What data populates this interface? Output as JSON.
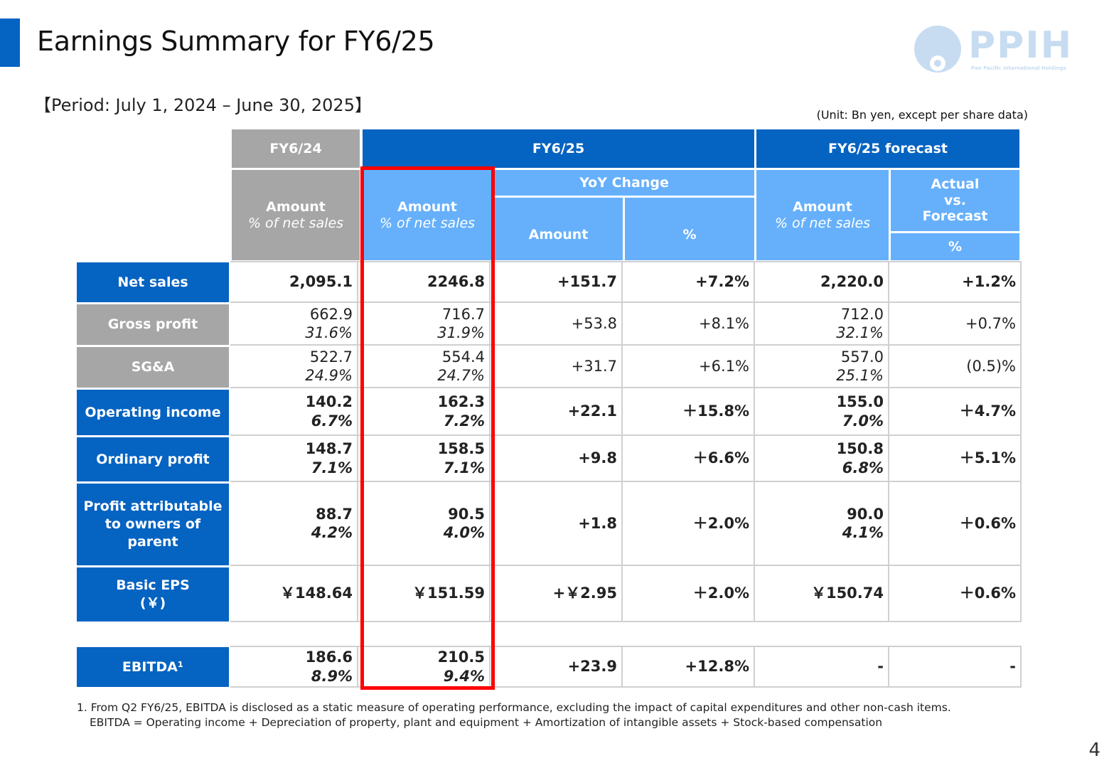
{
  "title": "Earnings Summary for FY6/25",
  "logo": {
    "text": "PPIH",
    "subtitle": "Pan Pacific International Holdings"
  },
  "period": "【Period: July 1, 2024 – June 30, 2025】",
  "unit": "(Unit: Bn yen, except per share data)",
  "headers": {
    "fy24": "FY6/24",
    "fy25": "FY6/25",
    "forecast": "FY6/25 forecast",
    "amount": "Amount",
    "pct_net_sales": "% of net sales",
    "yoy_change": "YoY Change",
    "yoy_amount": "Amount",
    "yoy_pct": "%",
    "actual_vs": "Actual",
    "actual_vs2": "vs.",
    "actual_vs3": "Forecast",
    "actual_pct": "%"
  },
  "rows": [
    {
      "label": "Net sales",
      "fy24": "2,095.1",
      "fy24_pct": "",
      "fy25": "2246.8",
      "fy25_pct": "",
      "yoy_amt": "+151.7",
      "yoy_pct": "+7.2%",
      "fc": "2,220.0",
      "fc_pct": "",
      "avf": "+1.2%"
    },
    {
      "label": "Gross profit",
      "fy24": "662.9",
      "fy24_pct": "31.6%",
      "fy25": "716.7",
      "fy25_pct": "31.9%",
      "yoy_amt": "+53.8",
      "yoy_pct": "+8.1%",
      "fc": "712.0",
      "fc_pct": "32.1%",
      "avf": "+0.7%"
    },
    {
      "label": "SG&A",
      "fy24": "522.7",
      "fy24_pct": "24.9%",
      "fy25": "554.4",
      "fy25_pct": "24.7%",
      "yoy_amt": "+31.7",
      "yoy_pct": "+6.1%",
      "fc": "557.0",
      "fc_pct": "25.1%",
      "avf": "(0.5)%"
    },
    {
      "label": "Operating income",
      "fy24": "140.2",
      "fy24_pct": "6.7%",
      "fy25": "162.3",
      "fy25_pct": "7.2%",
      "yoy_amt": "+22.1",
      "yoy_pct": "＋15.8%",
      "fc": "155.0",
      "fc_pct": "7.0%",
      "avf": "＋4.7%"
    },
    {
      "label": "Ordinary profit",
      "fy24": "148.7",
      "fy24_pct": "7.1%",
      "fy25": "158.5",
      "fy25_pct": "7.1%",
      "yoy_amt": "+9.8",
      "yoy_pct": "＋6.6%",
      "fc": "150.8",
      "fc_pct": "6.8%",
      "avf": "＋5.1%"
    },
    {
      "label": "Profit attributable to owners of parent",
      "fy24": "88.7",
      "fy24_pct": "4.2%",
      "fy25": "90.5",
      "fy25_pct": "4.0%",
      "yoy_amt": "+1.8",
      "yoy_pct": "＋2.0%",
      "fc": "90.0",
      "fc_pct": "4.1%",
      "avf": "＋0.6%"
    },
    {
      "label": "Basic EPS",
      "label2": "(￥)",
      "fy24": "￥148.64",
      "fy24_pct": "",
      "fy25": "￥151.59",
      "fy25_pct": "",
      "yoy_amt": "+￥2.95",
      "yoy_pct": "＋2.0%",
      "fc": "￥150.74",
      "fc_pct": "",
      "avf": "＋0.6%"
    },
    {
      "label": "EBITDA¹",
      "fy24": "186.6",
      "fy24_pct": "8.9%",
      "fy25": "210.5",
      "fy25_pct": "9.4%",
      "yoy_amt": "+23.9",
      "yoy_pct": "+12.8%",
      "fc": "-",
      "fc_pct": "",
      "avf": "-"
    }
  ],
  "footnotes": [
    "1. From Q2 FY6/25, EBITDA is disclosed as a static measure of operating performance, excluding the impact of capital expenditures and other non-cash items.",
    "EBITDA = Operating income + Depreciation of property, plant and equipment + Amortization of intangible assets + Stock-based compensation"
  ],
  "page_number": "4",
  "colors": {
    "accent": "#0563c1",
    "light_blue": "#66b0fb",
    "grey": "#a6a6a6",
    "highlight": "#ff0000",
    "logo": "#c7dcf1"
  }
}
